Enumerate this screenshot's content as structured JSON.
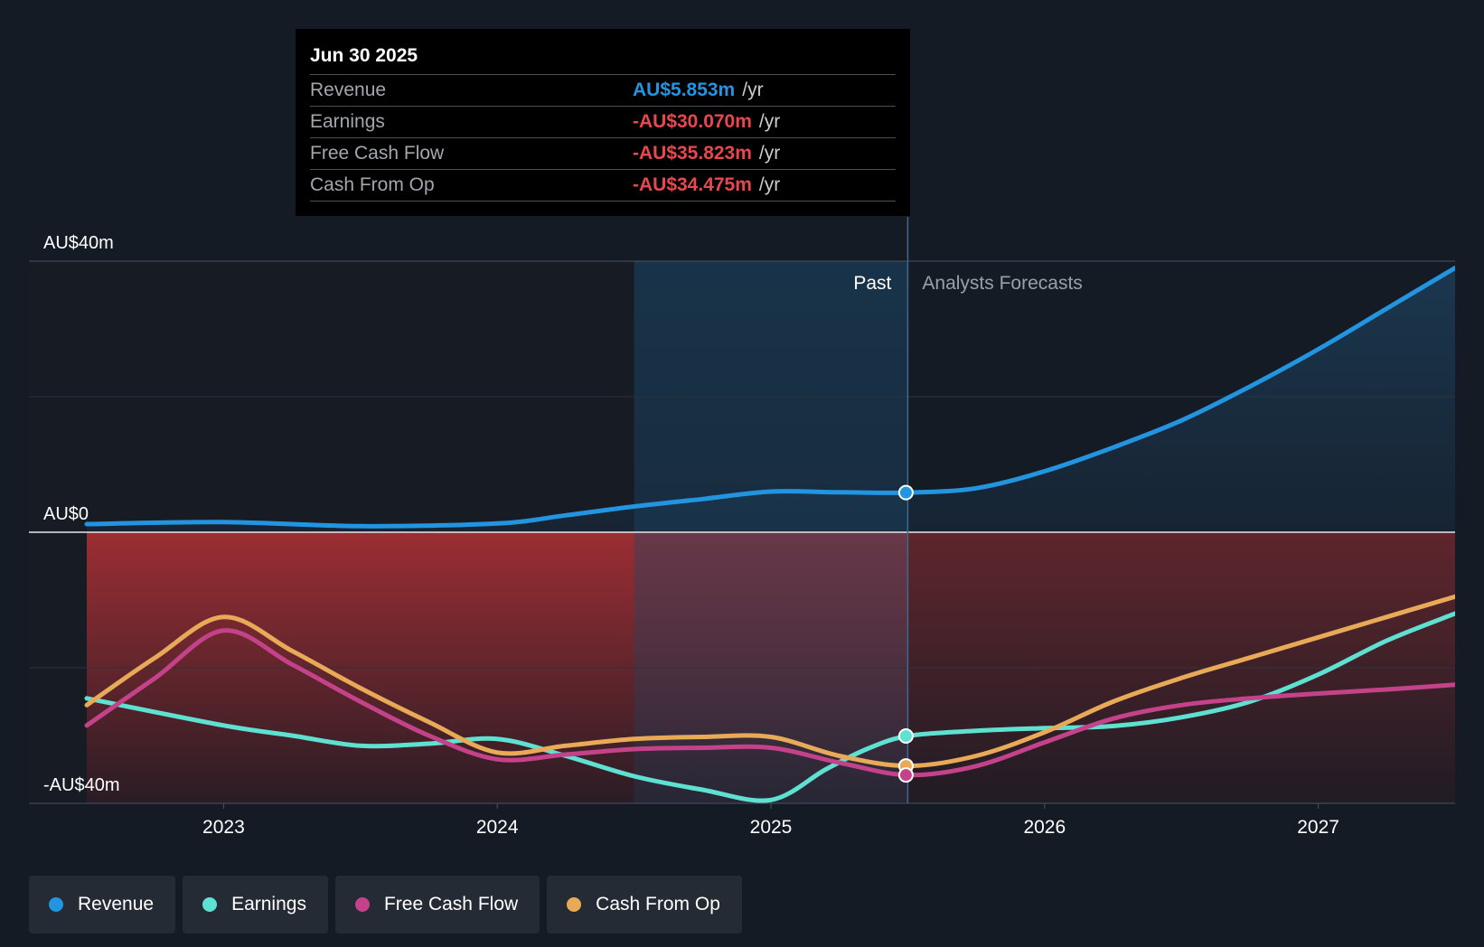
{
  "colors": {
    "revenue": "#2394df",
    "earnings": "#5fe1d2",
    "fcf": "#c4428a",
    "cfo": "#e9aa58"
  },
  "tooltip": {
    "date": "Jun 30 2025",
    "rows": [
      {
        "label": "Revenue",
        "value": "AU$5.853m",
        "unit": "/yr",
        "tone": "pos"
      },
      {
        "label": "Earnings",
        "value": "-AU$30.070m",
        "unit": "/yr",
        "tone": "neg"
      },
      {
        "label": "Free Cash Flow",
        "value": "-AU$35.823m",
        "unit": "/yr",
        "tone": "neg"
      },
      {
        "label": "Cash From Op",
        "value": "-AU$34.475m",
        "unit": "/yr",
        "tone": "neg"
      }
    ]
  },
  "legend": [
    {
      "label": "Revenue",
      "key": "revenue"
    },
    {
      "label": "Earnings",
      "key": "earnings"
    },
    {
      "label": "Free Cash Flow",
      "key": "fcf"
    },
    {
      "label": "Cash From Op",
      "key": "cfo"
    }
  ],
  "chart_data": {
    "type": "line",
    "title": "",
    "xlabel": "",
    "ylabel": "",
    "xlim": [
      2022.5,
      2027.5
    ],
    "ylim": [
      -40,
      40
    ],
    "y_ticks": [
      {
        "value": 40,
        "label": "AU$40m"
      },
      {
        "value": 0,
        "label": "AU$0"
      },
      {
        "value": -40,
        "label": "-AU$40m"
      }
    ],
    "y_gridlines": [
      40,
      20,
      0,
      -20,
      -40
    ],
    "x_ticks": [
      {
        "value": 2023,
        "label": "2023"
      },
      {
        "value": 2024,
        "label": "2024"
      },
      {
        "value": 2025,
        "label": "2025"
      },
      {
        "value": 2026,
        "label": "2026"
      },
      {
        "value": 2027,
        "label": "2027"
      }
    ],
    "divider_x": 2025.5,
    "highlight_range": [
      2024.5,
      2025.5
    ],
    "past_label": "Past",
    "forecast_label": "Analysts Forecasts",
    "series": [
      {
        "name": "Revenue",
        "key": "revenue",
        "x": [
          2022.5,
          2023.0,
          2023.5,
          2024.0,
          2024.25,
          2024.5,
          2024.75,
          2025.0,
          2025.25,
          2025.5,
          2025.75,
          2026.0,
          2026.25,
          2026.5,
          2026.75,
          2027.0,
          2027.25,
          2027.5
        ],
        "values": [
          1.2,
          1.5,
          0.9,
          1.3,
          2.5,
          3.8,
          4.9,
          6.0,
          5.9,
          5.853,
          6.5,
          9.0,
          12.5,
          16.5,
          21.5,
          27.0,
          33.0,
          39.0
        ]
      },
      {
        "name": "Earnings",
        "key": "earnings",
        "x": [
          2022.5,
          2023.0,
          2023.25,
          2023.5,
          2023.75,
          2024.0,
          2024.25,
          2024.5,
          2024.75,
          2025.0,
          2025.2,
          2025.35,
          2025.5,
          2025.75,
          2026.0,
          2026.25,
          2026.5,
          2026.75,
          2027.0,
          2027.25,
          2027.5
        ],
        "values": [
          -24.5,
          -28.5,
          -30.0,
          -31.5,
          -31.2,
          -30.5,
          -33.0,
          -36.0,
          -38.0,
          -39.5,
          -35.0,
          -32.0,
          -30.07,
          -29.3,
          -28.9,
          -28.6,
          -27.3,
          -25.0,
          -21.0,
          -16.0,
          -12.0
        ]
      },
      {
        "name": "Free Cash Flow",
        "key": "fcf",
        "x": [
          2022.5,
          2022.75,
          2023.0,
          2023.25,
          2023.5,
          2023.75,
          2024.0,
          2024.25,
          2024.5,
          2024.75,
          2025.0,
          2025.25,
          2025.5,
          2025.75,
          2026.0,
          2026.25,
          2026.5,
          2026.75,
          2027.0,
          2027.25,
          2027.5
        ],
        "values": [
          -28.5,
          -21.5,
          -14.5,
          -19.5,
          -25.0,
          -30.0,
          -33.5,
          -32.8,
          -32.0,
          -31.8,
          -31.8,
          -34.0,
          -35.823,
          -34.5,
          -31.0,
          -27.5,
          -25.5,
          -24.5,
          -23.8,
          -23.2,
          -22.5
        ]
      },
      {
        "name": "Cash From Op",
        "key": "cfo",
        "x": [
          2022.5,
          2022.75,
          2023.0,
          2023.25,
          2023.5,
          2023.75,
          2024.0,
          2024.25,
          2024.5,
          2024.75,
          2025.0,
          2025.25,
          2025.5,
          2025.75,
          2026.0,
          2026.25,
          2026.5,
          2026.75,
          2027.0,
          2027.25,
          2027.5
        ],
        "values": [
          -25.5,
          -18.5,
          -12.5,
          -17.5,
          -23.0,
          -28.0,
          -32.5,
          -31.5,
          -30.5,
          -30.2,
          -30.2,
          -33.0,
          -34.475,
          -33.0,
          -29.5,
          -25.0,
          -21.5,
          -18.5,
          -15.5,
          -12.5,
          -9.5
        ]
      }
    ]
  }
}
